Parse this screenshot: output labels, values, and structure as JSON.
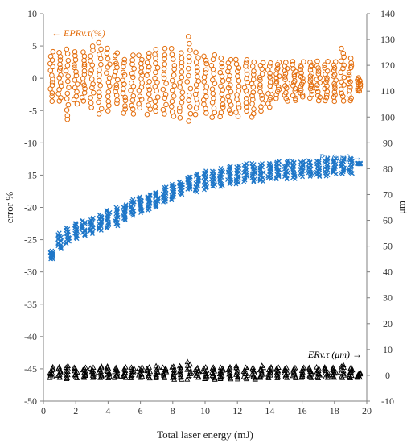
{
  "chart_data": {
    "type": "scatter",
    "title": "",
    "xlabel": "Total laser energy (mJ)",
    "ylabel_left": "error %",
    "ylabel_right": "μm",
    "xlim": [
      0,
      20
    ],
    "ylim_left": [
      -50,
      10
    ],
    "ylim_right": [
      -10,
      140
    ],
    "x_ticks": [
      "0",
      "2",
      "4",
      "6",
      "8",
      "10",
      "12",
      "14",
      "16",
      "18",
      "20"
    ],
    "y_left_ticks": [
      "10",
      "5",
      "0",
      "-5",
      "-10",
      "-15",
      "-20",
      "-25",
      "-30",
      "-35",
      "-40",
      "-45",
      "-50"
    ],
    "y_right_ticks": [
      "140",
      "130",
      "120",
      "110",
      "100",
      "90",
      "80",
      "70",
      "60",
      "50",
      "40",
      "30",
      "20",
      "10",
      "0",
      "-10"
    ],
    "grid": false,
    "colors": {
      "epr": "#E36C0A",
      "rv": "#1F77C8",
      "er": "#000000"
    },
    "annotations": {
      "epr_label": "← EPRv.τ(%)",
      "rv_label": "Rv (μm) →",
      "er_label": "ERv.τ (μm) →"
    },
    "series": [
      {
        "name": "EPRv.τ(%)",
        "axis": "left",
        "marker": "circle",
        "x": [
          0.5,
          1.0,
          1.5,
          2.0,
          2.5,
          3.0,
          3.5,
          4.0,
          4.5,
          5.0,
          5.5,
          6.0,
          6.5,
          7.0,
          7.5,
          8.0,
          8.5,
          9.0,
          9.5,
          10.0,
          10.5,
          11.0,
          11.5,
          12.0,
          12.5,
          13.0,
          13.5,
          14.0,
          14.5,
          15.0,
          15.5,
          16.0,
          16.5,
          17.0,
          17.5,
          18.0,
          18.5,
          19.0,
          19.5
        ],
        "y_min": [
          -3.5,
          -3.5,
          -6.5,
          -4,
          -3.5,
          -4.5,
          -5.5,
          -5,
          -4,
          -5.5,
          -5.5,
          -4.5,
          -5.5,
          -5,
          -5.5,
          -6,
          -6,
          -6.5,
          -5.5,
          -5.5,
          -6,
          -6,
          -5.5,
          -6,
          -5,
          -6,
          -5,
          -4.5,
          -3,
          -3.5,
          -3.5,
          -3,
          -3,
          -3.5,
          -3.5,
          -3.5,
          -3.5,
          -3.5,
          -2
        ],
        "y_max": [
          4,
          4,
          4.5,
          4,
          4,
          5,
          5.5,
          4.5,
          4,
          3,
          3.5,
          3.5,
          4,
          4.5,
          4.5,
          4.5,
          4,
          6.5,
          4,
          3.5,
          3.5,
          3,
          3,
          3,
          3,
          2.5,
          2.5,
          2.5,
          2.5,
          2.5,
          2.5,
          2.5,
          2.5,
          2.5,
          2.5,
          2.5,
          4.5,
          3,
          0
        ]
      },
      {
        "name": "Rv (μm)",
        "axis": "right",
        "marker": "cross",
        "x": [
          0.5,
          1.0,
          1.5,
          2.0,
          2.5,
          3.0,
          3.5,
          4.0,
          4.5,
          5.0,
          5.5,
          6.0,
          6.5,
          7.0,
          7.5,
          8.0,
          8.5,
          9.0,
          9.5,
          10.0,
          10.5,
          11.0,
          11.5,
          12.0,
          12.5,
          13.0,
          13.5,
          14.0,
          14.5,
          15.0,
          15.5,
          16.0,
          16.5,
          17.0,
          17.5,
          18.0,
          18.5,
          19.0,
          19.5
        ],
        "y_min": [
          45,
          49,
          51,
          53,
          54,
          55,
          56,
          57,
          58,
          60,
          62,
          63,
          64,
          65,
          67,
          68,
          70,
          72,
          71,
          72,
          73,
          73,
          74,
          74,
          75,
          75,
          75,
          76,
          76,
          76,
          76,
          77,
          77,
          77,
          77,
          78,
          78,
          78,
          82
        ],
        "y_max": [
          48,
          55,
          57,
          59,
          60,
          61,
          62,
          64,
          65,
          66,
          68,
          69,
          70,
          71,
          73,
          74,
          75,
          77,
          78,
          79,
          79,
          80,
          81,
          81,
          82,
          82,
          82,
          82,
          83,
          83,
          83,
          83,
          83,
          83,
          84,
          84,
          84,
          84,
          82
        ]
      },
      {
        "name": "ERv.τ (μm)",
        "axis": "right",
        "marker": "triangle",
        "x": [
          0.5,
          1.0,
          1.5,
          2.0,
          2.5,
          3.0,
          3.5,
          4.0,
          4.5,
          5.0,
          5.5,
          6.0,
          6.5,
          7.0,
          7.5,
          8.0,
          8.5,
          9.0,
          9.5,
          10.0,
          10.5,
          11.0,
          11.5,
          12.0,
          12.5,
          13.0,
          13.5,
          14.0,
          14.5,
          15.0,
          15.5,
          16.0,
          16.5,
          17.0,
          17.5,
          18.0,
          18.5,
          19.0,
          19.5
        ],
        "y_min": [
          -1,
          -1,
          -1.5,
          -1,
          -1,
          -1,
          -1,
          -1,
          -1,
          -1,
          -1,
          -1,
          -1,
          -1,
          -1,
          -1.5,
          -1.5,
          -1.5,
          -1,
          -1.5,
          -1.5,
          -1.5,
          -1.5,
          -1.5,
          -1.5,
          -1.5,
          -1,
          -1,
          -1,
          -1,
          -1,
          -1,
          -1,
          -1,
          -1,
          -1,
          -1,
          -1,
          -1
        ],
        "y_max": [
          3,
          3,
          3.5,
          3,
          3,
          3,
          3.5,
          3.5,
          3,
          3,
          3,
          3,
          3,
          3.5,
          3,
          3.5,
          3.5,
          5,
          3,
          3,
          3,
          3,
          3,
          3.5,
          3,
          3,
          3.5,
          3,
          3,
          3,
          3,
          3,
          3,
          3,
          3,
          3,
          4,
          3,
          1
        ]
      }
    ]
  }
}
